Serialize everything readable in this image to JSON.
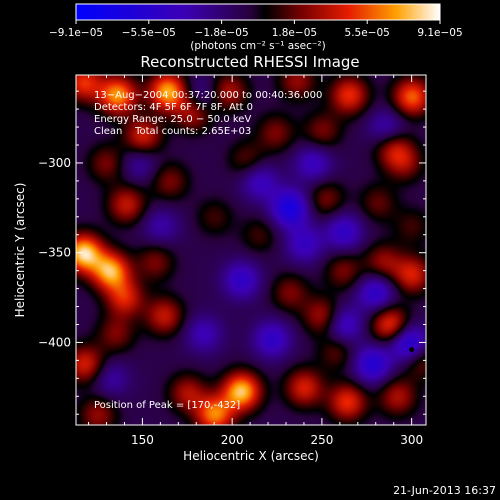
{
  "chart_data": {
    "type": "heatmap",
    "title": "Reconstructed RHESSI Image",
    "xlabel": "Heliocentric X (arcsec)",
    "ylabel": "Heliocentric Y (arcsec)",
    "xlim": [
      113,
      308
    ],
    "ylim": [
      -446,
      -251
    ],
    "x_ticks": [
      150,
      200,
      250,
      300
    ],
    "y_ticks": [
      -300,
      -350,
      -400
    ],
    "colorbar": {
      "range": [
        -9.1e-05,
        9.1e-05
      ],
      "tick_labels": [
        "−9.1e−05",
        "−5.5e−05",
        "−1.8e−05",
        "1.8e−05",
        "5.5e−05",
        "9.1e−05"
      ],
      "units_label": "(photons cm⁻² s⁻¹ asec⁻²)"
    },
    "annotations": [
      "13−Aug−2004 00:37:20.000 to 00:40:36.000",
      "Detectors: 4F 5F 6F 7F 8F, Att 0",
      "Energy Range: 25.0 − 50.0 keV",
      "Clean    Total counts: 2.65E+03"
    ],
    "peak_label": "Position of Peak = [170,-432]",
    "blobs": [
      {
        "x": 117,
        "y": -255,
        "v": 5.5e-05
      },
      {
        "x": 136,
        "y": -262,
        "v": 7.5e-05
      },
      {
        "x": 164,
        "y": -260,
        "v": 8e-05
      },
      {
        "x": 150,
        "y": -285,
        "v": 5e-05
      },
      {
        "x": 130,
        "y": -300,
        "v": 3e-05
      },
      {
        "x": 178,
        "y": -272,
        "v": 4e-05
      },
      {
        "x": 198,
        "y": -260,
        "v": 4e-05
      },
      {
        "x": 236,
        "y": -254,
        "v": 3.5e-05
      },
      {
        "x": 265,
        "y": -262,
        "v": 5.5e-05
      },
      {
        "x": 300,
        "y": -263,
        "v": 6.5e-05
      },
      {
        "x": 290,
        "y": -292,
        "v": 4e-05
      },
      {
        "x": 250,
        "y": -282,
        "v": 3e-05
      },
      {
        "x": 224,
        "y": -283,
        "v": 3e-05
      },
      {
        "x": 208,
        "y": -298,
        "v": 2.5e-05
      },
      {
        "x": 165,
        "y": -310,
        "v": 3e-05
      },
      {
        "x": 141,
        "y": -323,
        "v": 4.5e-05
      },
      {
        "x": 252,
        "y": -320,
        "v": 3e-05
      },
      {
        "x": 281,
        "y": -322,
        "v": 2.5e-05
      },
      {
        "x": 296,
        "y": -300,
        "v": 3e-05
      },
      {
        "x": 300,
        "y": -335,
        "v": 2e-05
      },
      {
        "x": 117,
        "y": -350,
        "v": 9e-05
      },
      {
        "x": 132,
        "y": -360,
        "v": 8e-05
      },
      {
        "x": 157,
        "y": -355,
        "v": 3e-05
      },
      {
        "x": 140,
        "y": -375,
        "v": 5e-05
      },
      {
        "x": 162,
        "y": -385,
        "v": 4.5e-05
      },
      {
        "x": 250,
        "y": -385,
        "v": 4e-05
      },
      {
        "x": 232,
        "y": -372,
        "v": 3e-05
      },
      {
        "x": 262,
        "y": -360,
        "v": 3e-05
      },
      {
        "x": 284,
        "y": -355,
        "v": 3.5e-05
      },
      {
        "x": 300,
        "y": -362,
        "v": 5e-05
      },
      {
        "x": 288,
        "y": -390,
        "v": 6e-05
      },
      {
        "x": 258,
        "y": -405,
        "v": 2.5e-05
      },
      {
        "x": 118,
        "y": -412,
        "v": 5e-05
      },
      {
        "x": 135,
        "y": -395,
        "v": 3e-05
      },
      {
        "x": 205,
        "y": -427,
        "v": 8.5e-05
      },
      {
        "x": 190,
        "y": -440,
        "v": 7e-05
      },
      {
        "x": 175,
        "y": -428,
        "v": 4e-05
      },
      {
        "x": 240,
        "y": -425,
        "v": 5e-05
      },
      {
        "x": 264,
        "y": -433,
        "v": 5.5e-05
      },
      {
        "x": 292,
        "y": -430,
        "v": 4e-05
      },
      {
        "x": 305,
        "y": -410,
        "v": 3e-05
      },
      {
        "x": 125,
        "y": -440,
        "v": 3.5e-05
      },
      {
        "x": 215,
        "y": -340,
        "v": 2e-05
      },
      {
        "x": 190,
        "y": -330,
        "v": 2e-05
      },
      {
        "x": 232,
        "y": -325,
        "v": -6e-05
      },
      {
        "x": 215,
        "y": -310,
        "v": -3.5e-05
      },
      {
        "x": 262,
        "y": -338,
        "v": -4e-05
      },
      {
        "x": 240,
        "y": -345,
        "v": -3.5e-05
      },
      {
        "x": 205,
        "y": -365,
        "v": -4e-05
      },
      {
        "x": 280,
        "y": -372,
        "v": -4.5e-05
      },
      {
        "x": 262,
        "y": -390,
        "v": -4e-05
      },
      {
        "x": 298,
        "y": -400,
        "v": -6e-05
      },
      {
        "x": 278,
        "y": -412,
        "v": -5e-05
      },
      {
        "x": 222,
        "y": -398,
        "v": -4e-05
      },
      {
        "x": 184,
        "y": -395,
        "v": -3e-05
      },
      {
        "x": 160,
        "y": -335,
        "v": -2.5e-05
      },
      {
        "x": 148,
        "y": -300,
        "v": -2.5e-05
      },
      {
        "x": 286,
        "y": -280,
        "v": -3e-05
      },
      {
        "x": 245,
        "y": -300,
        "v": -3.5e-05
      },
      {
        "x": 132,
        "y": -420,
        "v": -2.5e-05
      },
      {
        "x": 182,
        "y": -262,
        "v": -2.5e-05
      }
    ]
  },
  "footer": {
    "timestamp": "21-Jun-2013 16:37"
  },
  "colors": {
    "background": "#000000",
    "text": "#ffffff"
  }
}
